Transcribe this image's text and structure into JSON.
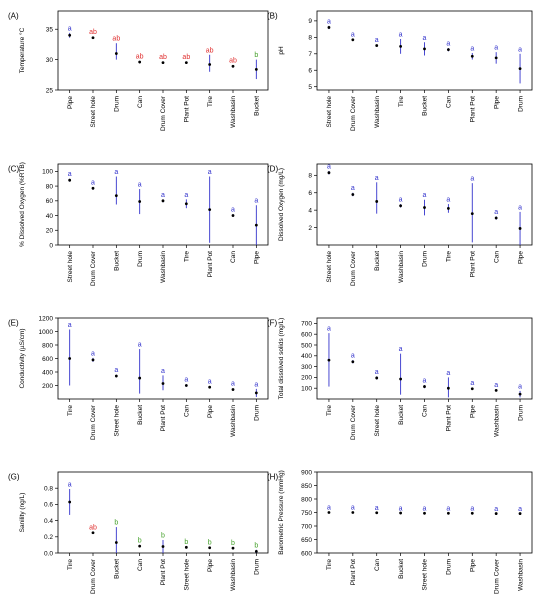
{
  "colors": {
    "blue": "#3333cc",
    "red": "#e03030",
    "green": "#44a02a",
    "point": "#000000",
    "frame": "#000000"
  },
  "chart_data": [
    {
      "type": "scatter",
      "title": "(A)",
      "ylabel": "Temperature °C",
      "ylim": [
        25,
        38
      ],
      "yticks": [
        25,
        30,
        35
      ],
      "grid": false,
      "categories": [
        "Pipe",
        "Street hole",
        "Drum",
        "Can",
        "Drum Cover",
        "Plant Pot",
        "Tire",
        "Washbasin",
        "Bucket"
      ],
      "values": [
        34.0,
        33.6,
        31.0,
        29.6,
        29.5,
        29.5,
        29.2,
        28.9,
        28.4
      ],
      "lower": [
        33.6,
        33.4,
        30.0,
        29.4,
        29.3,
        29.3,
        28.0,
        28.7,
        26.8
      ],
      "upper": [
        34.4,
        33.8,
        32.7,
        29.8,
        29.7,
        29.7,
        30.8,
        29.1,
        30.0
      ],
      "letters": [
        "a",
        "ab",
        "ab",
        "ab",
        "ab",
        "ab",
        "ab",
        "ab",
        "b"
      ],
      "letter_colors": [
        "blue",
        "red",
        "red",
        "red",
        "red",
        "red",
        "red",
        "red",
        "green"
      ]
    },
    {
      "type": "scatter",
      "title": "(B)",
      "ylabel": "pH",
      "ylim": [
        4.8,
        9.6
      ],
      "yticks": [
        5,
        6,
        7,
        8,
        9
      ],
      "grid": false,
      "categories": [
        "Street hole",
        "Drum Cover",
        "Washbasin",
        "Tire",
        "Bucket",
        "Can",
        "Plant Pot",
        "Pipe",
        "Drum"
      ],
      "values": [
        8.6,
        7.85,
        7.5,
        7.45,
        7.3,
        7.25,
        6.85,
        6.75,
        6.1
      ],
      "lower": [
        8.5,
        7.8,
        7.45,
        7.0,
        6.9,
        7.15,
        6.65,
        6.4,
        5.2
      ],
      "upper": [
        8.7,
        7.9,
        7.55,
        7.9,
        7.7,
        7.35,
        7.05,
        7.1,
        7.0
      ],
      "letters": [
        "a",
        "a",
        "a",
        "a",
        "a",
        "a",
        "a",
        "a",
        "a"
      ],
      "letter_colors": [
        "blue",
        "blue",
        "blue",
        "blue",
        "blue",
        "blue",
        "blue",
        "blue",
        "blue"
      ]
    },
    {
      "type": "scatter",
      "title": "(C)",
      "ylabel": "% Dissolved Oxygen (%RTB)",
      "ylim": [
        0,
        110
      ],
      "yticks": [
        0,
        20,
        40,
        60,
        80,
        100
      ],
      "grid": false,
      "categories": [
        "Street hole",
        "Drum Cover",
        "Bucket",
        "Drum",
        "Washbasin",
        "Tire",
        "Plant Pot",
        "Can",
        "Pipe"
      ],
      "values": [
        88,
        77,
        67,
        59,
        60,
        56,
        48,
        40,
        27
      ],
      "lower": [
        86,
        75,
        55,
        42,
        58,
        50,
        3,
        38,
        0
      ],
      "upper": [
        90,
        79,
        93,
        76,
        62,
        62,
        93,
        42,
        54
      ],
      "letters": [
        "a",
        "a",
        "a",
        "a",
        "a",
        "a",
        "a",
        "a",
        "a"
      ],
      "letter_colors": [
        "blue",
        "blue",
        "blue",
        "blue",
        "blue",
        "blue",
        "blue",
        "blue",
        "blue"
      ]
    },
    {
      "type": "scatter",
      "title": "(D)",
      "ylabel": "Dissolved Oxygen (mg/L)",
      "ylim": [
        0,
        9.3
      ],
      "yticks": [
        2,
        4,
        6,
        8
      ],
      "grid": false,
      "categories": [
        "Street hole",
        "Drum Cover",
        "Bucket",
        "Washbasin",
        "Drum",
        "Tire",
        "Plant Pot",
        "Can",
        "Pipe"
      ],
      "values": [
        8.3,
        5.8,
        5.0,
        4.5,
        4.3,
        4.2,
        3.6,
        3.1,
        1.9
      ],
      "lower": [
        8.1,
        5.6,
        3.6,
        4.3,
        3.4,
        3.7,
        0.3,
        2.9,
        0.0
      ],
      "upper": [
        8.5,
        6.0,
        7.2,
        4.7,
        5.2,
        4.7,
        7.1,
        3.3,
        3.8
      ],
      "letters": [
        "a",
        "a",
        "a",
        "a",
        "a",
        "a",
        "a",
        "a",
        "a"
      ],
      "letter_colors": [
        "blue",
        "blue",
        "blue",
        "blue",
        "blue",
        "blue",
        "blue",
        "blue",
        "blue"
      ]
    },
    {
      "type": "scatter",
      "title": "(E)",
      "ylabel": "Conductivity (µS/cm)",
      "ylim": [
        0,
        1200
      ],
      "yticks": [
        200,
        400,
        600,
        800,
        1000,
        1200
      ],
      "grid": false,
      "categories": [
        "Tire",
        "Drum Cover",
        "Street hole",
        "Bucket",
        "Plant Pot",
        "Can",
        "Pipe",
        "Washbasin",
        "Drum"
      ],
      "values": [
        600,
        580,
        340,
        310,
        230,
        200,
        175,
        140,
        90
      ],
      "lower": [
        200,
        550,
        320,
        80,
        130,
        180,
        160,
        120,
        30
      ],
      "upper": [
        1030,
        610,
        360,
        740,
        350,
        220,
        190,
        160,
        150
      ],
      "letters": [
        "a",
        "a",
        "a",
        "a",
        "a",
        "a",
        "a",
        "a",
        "a"
      ],
      "letter_colors": [
        "blue",
        "blue",
        "blue",
        "blue",
        "blue",
        "blue",
        "blue",
        "blue",
        "blue"
      ]
    },
    {
      "type": "scatter",
      "title": "(F)",
      "ylabel": "Total dissolved solids (mg/L)",
      "ylim": [
        0,
        750
      ],
      "yticks": [
        100,
        200,
        300,
        400,
        500,
        600,
        700
      ],
      "grid": false,
      "categories": [
        "Tire",
        "Drum Cover",
        "Street hole",
        "Bucket",
        "Can",
        "Plant Pot",
        "Pipe",
        "Washbasin",
        "Drum"
      ],
      "values": [
        360,
        345,
        195,
        185,
        115,
        100,
        95,
        80,
        45
      ],
      "lower": [
        115,
        330,
        180,
        40,
        100,
        15,
        85,
        70,
        15
      ],
      "upper": [
        610,
        360,
        210,
        420,
        130,
        200,
        105,
        90,
        75
      ],
      "letters": [
        "a",
        "a",
        "a",
        "a",
        "a",
        "a",
        "a",
        "a",
        "a"
      ],
      "letter_colors": [
        "blue",
        "blue",
        "blue",
        "blue",
        "blue",
        "blue",
        "blue",
        "blue",
        "blue"
      ]
    },
    {
      "type": "scatter",
      "title": "(G)",
      "ylabel": "Sanility (ng/L)",
      "ylim": [
        0,
        1.0
      ],
      "yticks": [
        0.0,
        0.2,
        0.4,
        0.6,
        0.8
      ],
      "grid": false,
      "categories": [
        "Tire",
        "Drum Cover",
        "Bucket",
        "Can",
        "Plant Pot",
        "Street hole",
        "Pipe",
        "Washbasin",
        "Drum"
      ],
      "values": [
        0.63,
        0.25,
        0.13,
        0.085,
        0.08,
        0.07,
        0.065,
        0.06,
        0.02
      ],
      "lower": [
        0.47,
        0.24,
        0.0,
        0.07,
        0.0,
        0.06,
        0.055,
        0.05,
        0.0
      ],
      "upper": [
        0.79,
        0.26,
        0.32,
        0.1,
        0.16,
        0.08,
        0.075,
        0.07,
        0.04
      ],
      "letters": [
        "a",
        "ab",
        "b",
        "b",
        "b",
        "b",
        "b",
        "b",
        "b"
      ],
      "letter_colors": [
        "blue",
        "red",
        "green",
        "green",
        "green",
        "green",
        "green",
        "green",
        "green"
      ]
    },
    {
      "type": "scatter",
      "title": "(H)",
      "ylabel": "Barometric Pressure (mmHg)",
      "ylim": [
        600,
        900
      ],
      "yticks": [
        600,
        650,
        700,
        750,
        800,
        850,
        900
      ],
      "grid": false,
      "categories": [
        "Tire",
        "Plant Pot",
        "Can",
        "Bucket",
        "Street hole",
        "Drum",
        "Pipe",
        "Drum Cover",
        "Washbasin"
      ],
      "values": [
        750,
        750,
        749,
        748,
        747,
        747,
        747,
        746,
        746
      ],
      "lower": [
        749,
        749,
        748,
        747,
        746,
        746,
        746,
        745,
        745
      ],
      "upper": [
        751,
        751,
        750,
        749,
        748,
        748,
        748,
        747,
        747
      ],
      "letters": [
        "a",
        "a",
        "a",
        "a",
        "a",
        "a",
        "a",
        "a",
        "a"
      ],
      "letter_colors": [
        "blue",
        "blue",
        "blue",
        "blue",
        "blue",
        "blue",
        "blue",
        "blue",
        "blue"
      ]
    }
  ]
}
